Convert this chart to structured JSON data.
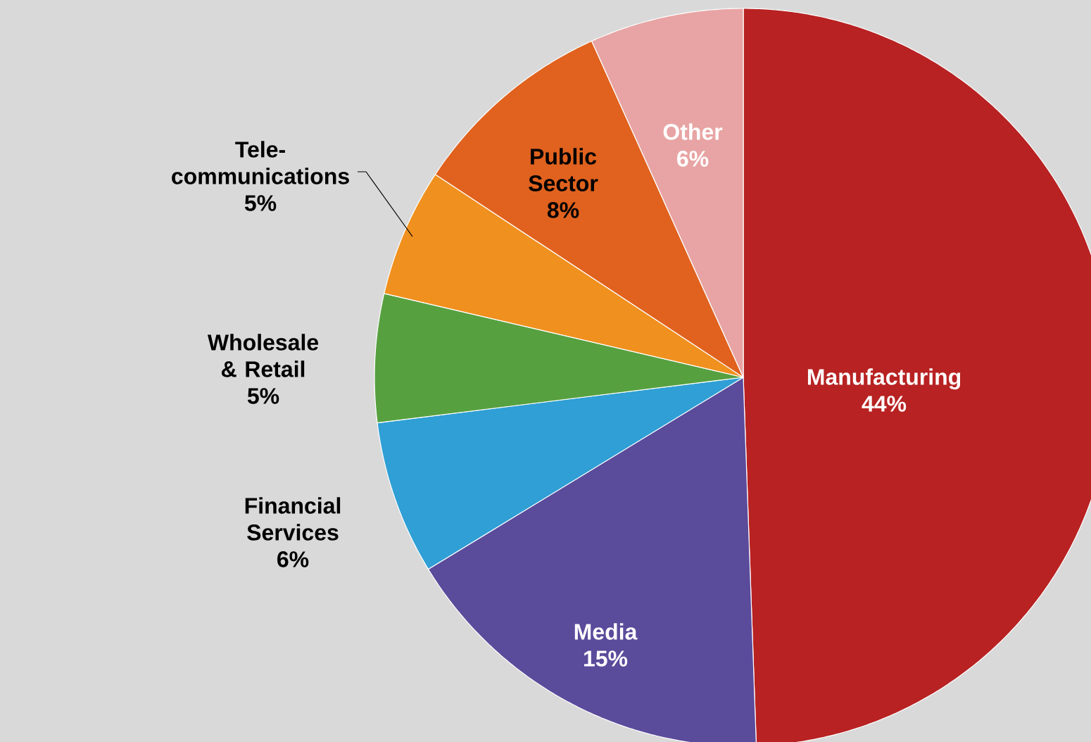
{
  "chart_data": {
    "type": "pie",
    "categories": [
      "Manufacturing",
      "Media",
      "Financial Services",
      "Wholesale & Retail",
      "Tele-communications",
      "Public Sector",
      "Other"
    ],
    "values": [
      44,
      15,
      6,
      5,
      5,
      8,
      6
    ],
    "value_labels": [
      "44%",
      "15%",
      "6%",
      "5%",
      "5%",
      "8%",
      "6%"
    ],
    "colors": [
      "#b82222",
      "#5b4b9b",
      "#2f9fd5",
      "#57a040",
      "#f0901e",
      "#e0621e",
      "#e8a4a4"
    ]
  }
}
